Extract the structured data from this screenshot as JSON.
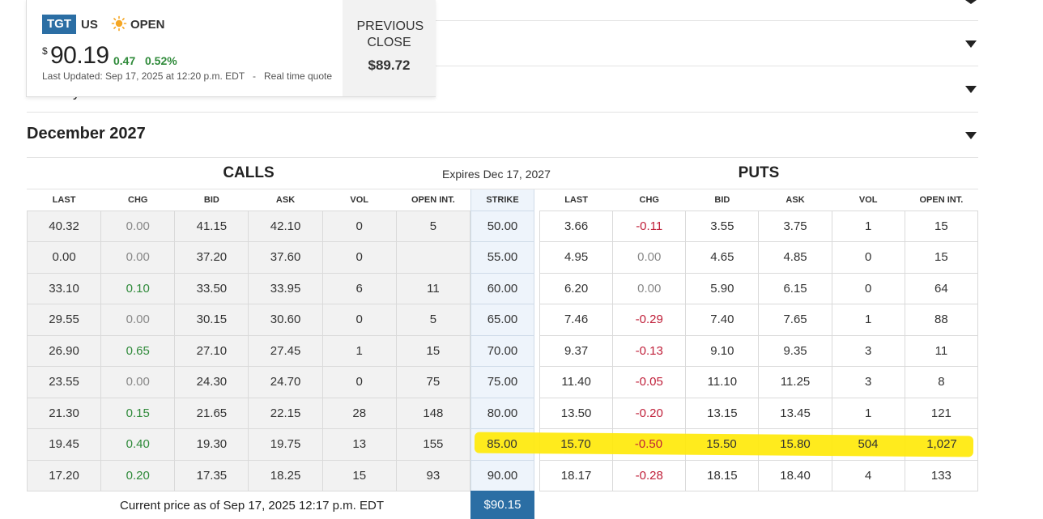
{
  "accordion": {
    "title": "December 2027",
    "partial_text": "y"
  },
  "quote": {
    "ticker": "TGT",
    "country": "US",
    "market_status": "OPEN",
    "currency_symbol": "$",
    "price": "90.19",
    "change": "0.47",
    "change_percent": "0.52%",
    "last_updated": "Last Updated: Sep 17, 2025 at 12:20 p.m. EDT",
    "separator": "-",
    "quote_type": "Real time quote",
    "previous_close_label": "PREVIOUS CLOSE",
    "previous_close_value": "$89.72",
    "colors": {
      "badge": "#2b6ea4",
      "positive": "#2f8a3a",
      "negative": "#c0203a"
    }
  },
  "chain": {
    "calls_title": "CALLS",
    "puts_title": "PUTS",
    "expires": "Expires Dec 17, 2027",
    "calls_headers": [
      "LAST",
      "CHG",
      "BID",
      "ASK",
      "VOL",
      "OPEN INT."
    ],
    "strike_header": "STRIKE",
    "puts_headers": [
      "LAST",
      "CHG",
      "BID",
      "ASK",
      "VOL",
      "OPEN INT."
    ],
    "rows": [
      {
        "calls": [
          "40.32",
          "0.00",
          "41.15",
          "42.10",
          "0",
          "5"
        ],
        "strike": "50.00",
        "puts": [
          "3.66",
          "-0.11",
          "3.55",
          "3.75",
          "1",
          "15"
        ]
      },
      {
        "calls": [
          "0.00",
          "0.00",
          "37.20",
          "37.60",
          "0",
          ""
        ],
        "strike": "55.00",
        "puts": [
          "4.95",
          "0.00",
          "4.65",
          "4.85",
          "0",
          "15"
        ]
      },
      {
        "calls": [
          "33.10",
          "0.10",
          "33.50",
          "33.95",
          "6",
          "11"
        ],
        "strike": "60.00",
        "puts": [
          "6.20",
          "0.00",
          "5.90",
          "6.15",
          "0",
          "64"
        ]
      },
      {
        "calls": [
          "29.55",
          "0.00",
          "30.15",
          "30.60",
          "0",
          "5"
        ],
        "strike": "65.00",
        "puts": [
          "7.46",
          "-0.29",
          "7.40",
          "7.65",
          "1",
          "88"
        ]
      },
      {
        "calls": [
          "26.90",
          "0.65",
          "27.10",
          "27.45",
          "1",
          "15"
        ],
        "strike": "70.00",
        "puts": [
          "9.37",
          "-0.13",
          "9.10",
          "9.35",
          "3",
          "11"
        ]
      },
      {
        "calls": [
          "23.55",
          "0.00",
          "24.30",
          "24.70",
          "0",
          "75"
        ],
        "strike": "75.00",
        "puts": [
          "11.40",
          "-0.05",
          "11.10",
          "11.25",
          "3",
          "8"
        ]
      },
      {
        "calls": [
          "21.30",
          "0.15",
          "21.65",
          "22.15",
          "28",
          "148"
        ],
        "strike": "80.00",
        "puts": [
          "13.50",
          "-0.20",
          "13.15",
          "13.45",
          "1",
          "121"
        ]
      },
      {
        "calls": [
          "19.45",
          "0.40",
          "19.30",
          "19.75",
          "13",
          "155"
        ],
        "strike": "85.00",
        "puts": [
          "15.70",
          "-0.50",
          "15.50",
          "15.80",
          "504",
          "1,027"
        ]
      },
      {
        "calls": [
          "17.20",
          "0.20",
          "17.35",
          "18.25",
          "15",
          "93"
        ],
        "strike": "90.00",
        "puts": [
          "18.17",
          "-0.28",
          "18.15",
          "18.40",
          "4",
          "133"
        ]
      }
    ],
    "current_price_text": "Current price as of Sep 17, 2025 12:17 p.m. EDT",
    "current_price": "$90.15",
    "highlight_color": "#ffe90a"
  }
}
